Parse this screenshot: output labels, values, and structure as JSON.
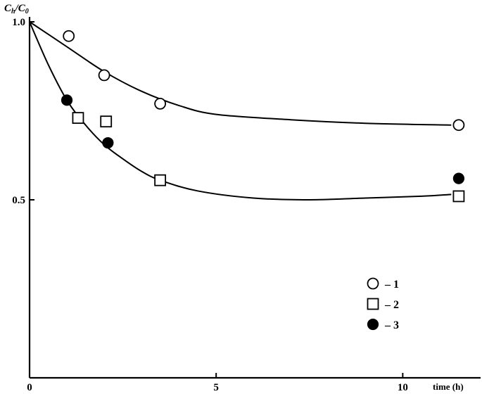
{
  "chart_data": {
    "type": "scatter",
    "ylabel": "C",
    "ylabel_sub": "h",
    "ylabel_sep": "/C",
    "ylabel_sub2": "0",
    "xlabel": "time (h)",
    "xlim": [
      0,
      12.2
    ],
    "ylim": [
      0,
      1.0
    ],
    "x_ticks": [
      {
        "value": 0,
        "label": "0"
      },
      {
        "value": 5,
        "label": "5"
      },
      {
        "value": 10,
        "label": "10"
      }
    ],
    "y_ticks": [
      {
        "value": 1.0,
        "label": "1.0"
      },
      {
        "value": 0.5,
        "label": "0.5"
      }
    ],
    "grid": false,
    "legend_position": "bottom-right",
    "series": [
      {
        "name": "1",
        "marker": "circle-open",
        "points": [
          [
            1.05,
            0.96
          ],
          [
            2.0,
            0.85
          ],
          [
            3.5,
            0.77
          ],
          [
            11.5,
            0.71
          ]
        ],
        "fit": [
          [
            0,
            1.0
          ],
          [
            1,
            0.93
          ],
          [
            2,
            0.86
          ],
          [
            3,
            0.805
          ],
          [
            4,
            0.765
          ],
          [
            5,
            0.74
          ],
          [
            7,
            0.725
          ],
          [
            9,
            0.715
          ],
          [
            11.3,
            0.71
          ]
        ]
      },
      {
        "name": "2",
        "marker": "square-open",
        "points": [
          [
            1.3,
            0.73
          ],
          [
            2.05,
            0.72
          ],
          [
            3.5,
            0.555
          ],
          [
            11.5,
            0.51
          ]
        ],
        "fit": [
          [
            0,
            1.0
          ],
          [
            0.5,
            0.88
          ],
          [
            1,
            0.78
          ],
          [
            1.5,
            0.71
          ],
          [
            2,
            0.655
          ],
          [
            2.5,
            0.615
          ],
          [
            3,
            0.58
          ],
          [
            3.5,
            0.555
          ],
          [
            4.5,
            0.525
          ],
          [
            6,
            0.505
          ],
          [
            7.5,
            0.5
          ],
          [
            9,
            0.505
          ],
          [
            10.5,
            0.51
          ],
          [
            11.3,
            0.515
          ]
        ]
      },
      {
        "name": "3",
        "marker": "circle-filled",
        "points": [
          [
            1.0,
            0.78
          ],
          [
            2.1,
            0.66
          ],
          [
            11.5,
            0.56
          ]
        ]
      }
    ]
  },
  "legend": {
    "items": [
      {
        "marker": "circle-open",
        "label": "– 1"
      },
      {
        "marker": "square-open",
        "label": "– 2"
      },
      {
        "marker": "circle-filled",
        "label": "– 3"
      }
    ]
  }
}
